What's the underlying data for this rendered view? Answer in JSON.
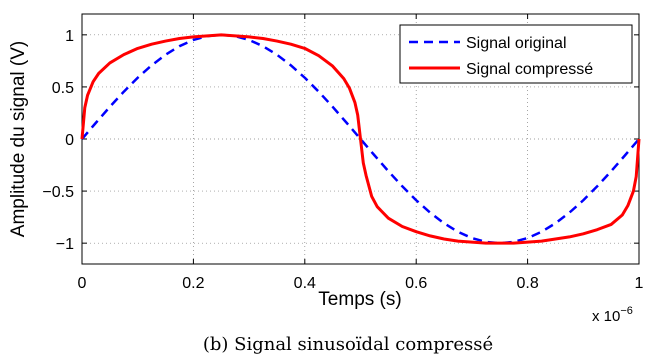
{
  "chart_data": {
    "type": "line",
    "title": "",
    "xlabel": "Temps (s)",
    "ylabel": "Amplitude du signal (V)",
    "x_multiplier_label": "x 10",
    "x_multiplier_exponent": "−6",
    "xlim": [
      0,
      1
    ],
    "ylim": [
      -1.2,
      1.2
    ],
    "xticks": [
      0,
      0.2,
      0.4,
      0.6,
      0.8,
      1
    ],
    "xtick_labels": [
      "0",
      "0.2",
      "0.4",
      "0.6",
      "0.8",
      "1"
    ],
    "yticks": [
      -1,
      -0.5,
      0,
      0.5,
      1
    ],
    "ytick_labels": [
      "−1",
      "−0.5",
      "0",
      "0.5",
      "1"
    ],
    "grid": true,
    "legend_position": "top-right",
    "series": [
      {
        "name": "Signal original",
        "color": "#0000ff",
        "dash": "dashed",
        "x": [
          0,
          0.025,
          0.05,
          0.075,
          0.1,
          0.125,
          0.15,
          0.175,
          0.2,
          0.225,
          0.25,
          0.275,
          0.3,
          0.325,
          0.35,
          0.375,
          0.4,
          0.425,
          0.45,
          0.475,
          0.5,
          0.525,
          0.55,
          0.575,
          0.6,
          0.625,
          0.65,
          0.675,
          0.7,
          0.725,
          0.75,
          0.775,
          0.8,
          0.825,
          0.85,
          0.875,
          0.9,
          0.925,
          0.95,
          0.975,
          1
        ],
        "y": [
          0,
          0.156,
          0.309,
          0.454,
          0.588,
          0.707,
          0.809,
          0.891,
          0.951,
          0.988,
          1,
          0.988,
          0.951,
          0.891,
          0.809,
          0.707,
          0.588,
          0.454,
          0.309,
          0.156,
          0,
          -0.156,
          -0.309,
          -0.454,
          -0.588,
          -0.707,
          -0.809,
          -0.891,
          -0.951,
          -0.988,
          -1,
          -0.988,
          -0.951,
          -0.891,
          -0.809,
          -0.707,
          -0.588,
          -0.454,
          -0.309,
          -0.156,
          0
        ]
      },
      {
        "name": "Signal compressé",
        "color": "#ff0000",
        "dash": "solid",
        "x": [
          0,
          0.005,
          0.01,
          0.02,
          0.03,
          0.05,
          0.075,
          0.1,
          0.125,
          0.15,
          0.175,
          0.2,
          0.225,
          0.25,
          0.275,
          0.3,
          0.325,
          0.35,
          0.375,
          0.4,
          0.425,
          0.45,
          0.47,
          0.48,
          0.49,
          0.495,
          0.5,
          0.505,
          0.51,
          0.52,
          0.53,
          0.55,
          0.575,
          0.6,
          0.625,
          0.65,
          0.675,
          0.7,
          0.725,
          0.75,
          0.775,
          0.8,
          0.825,
          0.85,
          0.875,
          0.9,
          0.925,
          0.95,
          0.97,
          0.98,
          0.99,
          0.995,
          1
        ],
        "y": [
          0,
          0.3,
          0.42,
          0.55,
          0.63,
          0.73,
          0.81,
          0.87,
          0.91,
          0.94,
          0.965,
          0.98,
          0.99,
          1,
          0.99,
          0.98,
          0.965,
          0.94,
          0.91,
          0.87,
          0.8,
          0.7,
          0.58,
          0.49,
          0.35,
          0.23,
          0,
          -0.23,
          -0.35,
          -0.55,
          -0.65,
          -0.76,
          -0.84,
          -0.89,
          -0.93,
          -0.96,
          -0.98,
          -0.99,
          -1,
          -1,
          -1,
          -0.99,
          -0.98,
          -0.96,
          -0.94,
          -0.91,
          -0.87,
          -0.82,
          -0.73,
          -0.64,
          -0.5,
          -0.36,
          0
        ]
      }
    ]
  },
  "caption": "(b) Signal sinusoïdal compressé"
}
